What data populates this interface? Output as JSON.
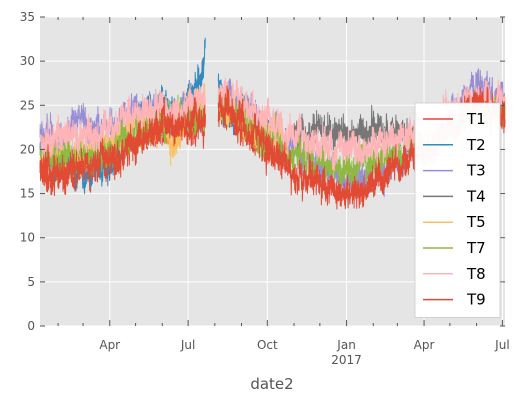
{
  "chart_data": {
    "type": "line",
    "title": "",
    "xlabel": "date2",
    "ylabel": "",
    "ylim": [
      0,
      35
    ],
    "xlim": [
      "2016-01-11",
      "2017-07-04"
    ],
    "grid": true,
    "background": "#e5e5e5",
    "legend_position": "right",
    "y_ticks": [
      0,
      5,
      10,
      15,
      20,
      25,
      30,
      35
    ],
    "x_ticks": [
      {
        "date": "2016-04-01",
        "label": "Apr",
        "sub": ""
      },
      {
        "date": "2016-07-01",
        "label": "Jul",
        "sub": ""
      },
      {
        "date": "2016-10-01",
        "label": "Oct",
        "sub": ""
      },
      {
        "date": "2017-01-01",
        "label": "Jan",
        "sub": "2017"
      },
      {
        "date": "2017-04-01",
        "label": "Apr",
        "sub": ""
      },
      {
        "date": "2017-07-01",
        "label": "Jul",
        "sub": ""
      }
    ],
    "x_minor_ticks": [
      "2016-02-01",
      "2016-03-01",
      "2016-05-01",
      "2016-06-01",
      "2016-08-01",
      "2016-09-01",
      "2016-11-01",
      "2016-12-01",
      "2017-02-01",
      "2017-03-01",
      "2017-05-01",
      "2017-06-01"
    ],
    "series": [
      {
        "name": "T1",
        "color": "#e24a33",
        "points": [
          [
            "2016-01-11",
            17.5
          ],
          [
            "2016-02-01",
            16.5
          ],
          [
            "2016-03-01",
            18.0
          ],
          [
            "2016-04-01",
            18.5
          ],
          [
            "2016-05-01",
            21.0
          ],
          [
            "2016-06-01",
            23.0
          ],
          [
            "2016-07-01",
            22.5
          ],
          [
            "2016-07-20",
            23.0
          ],
          [
            "2016-08-15",
            24.5
          ],
          [
            "2016-09-01",
            22.5
          ],
          [
            "2016-10-01",
            19.5
          ],
          [
            "2016-10-25",
            19.5
          ]
        ]
      },
      {
        "name": "T2",
        "color": "#348abd",
        "points": [
          [
            "2016-01-11",
            20.0
          ],
          [
            "2016-02-01",
            18.5
          ],
          [
            "2016-03-01",
            17.5
          ],
          [
            "2016-04-01",
            18.5
          ],
          [
            "2016-05-01",
            24.0
          ],
          [
            "2016-06-01",
            25.0
          ],
          [
            "2016-06-20",
            24.0
          ],
          [
            "2016-07-01",
            26.0
          ],
          [
            "2016-07-15",
            27.0
          ],
          [
            "2016-07-21",
            32.5
          ],
          [
            "2016-08-15",
            24.0
          ],
          [
            "2016-09-01",
            24.5
          ],
          [
            "2016-10-01",
            21.5
          ],
          [
            "2016-10-25",
            20.0
          ]
        ]
      },
      {
        "name": "T3",
        "color": "#988ed5",
        "points": [
          [
            "2016-01-11",
            21.5
          ],
          [
            "2016-02-01",
            21.5
          ],
          [
            "2016-03-01",
            23.0
          ],
          [
            "2016-04-01",
            22.0
          ],
          [
            "2016-05-01",
            24.5
          ],
          [
            "2016-06-01",
            23.5
          ],
          [
            "2016-07-01",
            24.0
          ],
          [
            "2016-07-20",
            24.5
          ],
          [
            "2016-08-15",
            25.5
          ],
          [
            "2016-09-01",
            25.0
          ],
          [
            "2016-10-01",
            22.0
          ],
          [
            "2016-11-01",
            20.0
          ],
          [
            "2016-12-01",
            18.0
          ],
          [
            "2017-01-01",
            16.5
          ],
          [
            "2017-02-01",
            17.0
          ],
          [
            "2017-03-01",
            18.5
          ],
          [
            "2017-04-01",
            20.0
          ],
          [
            "2017-05-01",
            23.0
          ],
          [
            "2017-06-01",
            27.5
          ],
          [
            "2017-07-04",
            25.5
          ]
        ]
      },
      {
        "name": "T4",
        "color": "#777777",
        "points": [
          [
            "2016-11-01",
            21.0
          ],
          [
            "2016-12-01",
            22.0
          ],
          [
            "2017-01-01",
            21.5
          ],
          [
            "2017-02-01",
            22.5
          ],
          [
            "2017-03-01",
            21.5
          ],
          [
            "2017-03-31",
            21.0
          ]
        ]
      },
      {
        "name": "T5",
        "color": "#fbc15e",
        "points": [
          [
            "2016-01-11",
            19.0
          ],
          [
            "2016-02-01",
            19.0
          ],
          [
            "2016-03-01",
            19.5
          ],
          [
            "2016-04-01",
            20.5
          ],
          [
            "2016-05-01",
            22.5
          ],
          [
            "2016-06-01",
            23.0
          ],
          [
            "2016-06-15",
            20.0
          ],
          [
            "2016-07-01",
            24.5
          ],
          [
            "2016-07-20",
            25.0
          ],
          [
            "2016-08-15",
            24.5
          ],
          [
            "2016-09-01",
            23.5
          ],
          [
            "2016-10-01",
            21.5
          ],
          [
            "2016-10-25",
            20.5
          ]
        ]
      },
      {
        "name": "T7",
        "color": "#8eba42",
        "points": [
          [
            "2016-01-11",
            19.5
          ],
          [
            "2016-02-01",
            18.5
          ],
          [
            "2016-03-01",
            19.5
          ],
          [
            "2016-04-01",
            20.0
          ],
          [
            "2016-05-01",
            22.0
          ],
          [
            "2016-06-01",
            23.5
          ],
          [
            "2016-07-01",
            24.0
          ],
          [
            "2016-07-20",
            24.0
          ],
          [
            "2016-08-15",
            24.5
          ],
          [
            "2016-09-01",
            23.5
          ],
          [
            "2016-10-01",
            21.0
          ],
          [
            "2016-11-01",
            19.5
          ],
          [
            "2016-12-01",
            18.5
          ],
          [
            "2017-01-01",
            17.5
          ],
          [
            "2017-02-01",
            18.5
          ],
          [
            "2017-03-01",
            19.5
          ],
          [
            "2017-04-01",
            20.5
          ],
          [
            "2017-05-01",
            22.5
          ],
          [
            "2017-06-01",
            24.5
          ],
          [
            "2017-07-04",
            24.0
          ]
        ]
      },
      {
        "name": "T8",
        "color": "#ffb5b8",
        "points": [
          [
            "2016-01-11",
            20.5
          ],
          [
            "2016-02-01",
            21.5
          ],
          [
            "2016-03-01",
            22.0
          ],
          [
            "2016-04-01",
            22.5
          ],
          [
            "2016-05-01",
            23.5
          ],
          [
            "2016-06-01",
            24.5
          ],
          [
            "2016-07-01",
            25.0
          ],
          [
            "2016-07-20",
            25.5
          ],
          [
            "2016-08-15",
            26.0
          ],
          [
            "2016-09-01",
            25.5
          ],
          [
            "2016-10-01",
            23.5
          ],
          [
            "2016-11-01",
            21.5
          ],
          [
            "2016-12-01",
            20.5
          ],
          [
            "2017-01-01",
            19.5
          ],
          [
            "2017-02-01",
            20.0
          ],
          [
            "2017-03-01",
            21.5
          ],
          [
            "2017-04-01",
            22.5
          ],
          [
            "2017-05-01",
            24.0
          ],
          [
            "2017-06-01",
            25.5
          ],
          [
            "2017-07-04",
            25.0
          ]
        ]
      },
      {
        "name": "T9",
        "color": "#e24a33",
        "points": [
          [
            "2016-01-11",
            18.0
          ],
          [
            "2016-02-01",
            17.0
          ],
          [
            "2016-03-01",
            18.5
          ],
          [
            "2016-04-01",
            19.0
          ],
          [
            "2016-05-01",
            21.0
          ],
          [
            "2016-06-01",
            22.5
          ],
          [
            "2016-07-01",
            23.0
          ],
          [
            "2016-07-20",
            23.5
          ],
          [
            "2016-08-15",
            25.0
          ],
          [
            "2016-09-01",
            23.0
          ],
          [
            "2016-10-01",
            20.0
          ],
          [
            "2016-11-01",
            17.5
          ],
          [
            "2016-12-01",
            16.0
          ],
          [
            "2017-01-01",
            15.0
          ],
          [
            "2017-02-01",
            16.0
          ],
          [
            "2017-03-01",
            18.0
          ],
          [
            "2017-04-01",
            19.5
          ],
          [
            "2017-05-01",
            22.0
          ],
          [
            "2017-06-01",
            25.0
          ],
          [
            "2017-07-04",
            24.0
          ]
        ]
      }
    ]
  }
}
